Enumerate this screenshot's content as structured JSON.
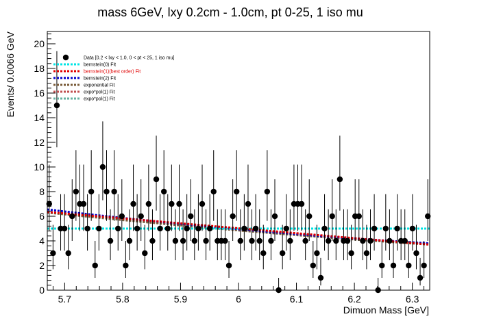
{
  "chart_data": {
    "type": "scatter",
    "title": "mass 6GeV, lxy 0.2cm - 1.0cm, pt 0-25, 1 iso mu",
    "xlabel": "Dimuon Mass [GeV]",
    "ylabel": "Events/ 0.0066 GeV",
    "xlim": [
      5.67,
      6.33
    ],
    "ylim": [
      0,
      21
    ],
    "x_ticks": [
      "5.7",
      "5.8",
      "5.9",
      "6",
      "6.1",
      "6.2",
      "6.3"
    ],
    "x_tick_values": [
      5.7,
      5.8,
      5.9,
      6.0,
      6.1,
      6.2,
      6.3
    ],
    "y_ticks": [
      "0",
      "2",
      "4",
      "6",
      "8",
      "10",
      "12",
      "14",
      "16",
      "18",
      "20"
    ],
    "y_tick_values": [
      0,
      2,
      4,
      6,
      8,
      10,
      12,
      14,
      16,
      18,
      20
    ],
    "grid": false,
    "legend_position": "top-left",
    "colors": {
      "data": "#000000",
      "bernstein0": "#00e5e5",
      "bernstein1": "#e00000",
      "bernstein2": "#0000cc",
      "exponential": "#7a5c3a",
      "expo_pol1_a": "#c05050",
      "expo_pol1_b": "#66b2a0"
    },
    "legend": [
      {
        "label": "Data [0.2 < lxy < 1.0, 0 < pt < 25, 1 iso mu]",
        "kind": "marker",
        "color": "#000000"
      },
      {
        "label": "bernstein(0) Fit",
        "kind": "line",
        "color": "#00e5e5"
      },
      {
        "label": "bernstein(1)(best order) Fit",
        "kind": "line",
        "color": "#e00000"
      },
      {
        "label": "bernstein(2) Fit",
        "kind": "line",
        "color": "#0000cc"
      },
      {
        "label": "exponential Fit",
        "kind": "line",
        "color": "#7a5c3a"
      },
      {
        "label": "expo*pol(1) Fit",
        "kind": "line",
        "color": "#c05050"
      },
      {
        "label": "expo*pol(1) Fit",
        "kind": "line",
        "color": "#66b2a0"
      }
    ],
    "data_points": {
      "name": "Data [0.2 < lxy < 1.0, 0 < pt < 25, 1 iso mu]",
      "x": [
        5.6733,
        5.6799,
        5.6865,
        5.6931,
        5.6997,
        5.7063,
        5.7129,
        5.7195,
        5.7261,
        5.7327,
        5.7393,
        5.7459,
        5.7525,
        5.7591,
        5.7657,
        5.7723,
        5.7789,
        5.7855,
        5.7921,
        5.7987,
        5.8053,
        5.8119,
        5.8185,
        5.8251,
        5.8317,
        5.8383,
        5.8449,
        5.8515,
        5.8581,
        5.8647,
        5.8713,
        5.8779,
        5.8845,
        5.8911,
        5.8977,
        5.9043,
        5.9109,
        5.9175,
        5.9241,
        5.9307,
        5.9373,
        5.9439,
        5.9505,
        5.9571,
        5.9637,
        5.9703,
        5.9769,
        5.9835,
        5.9901,
        5.9967,
        6.0033,
        6.0099,
        6.0165,
        6.0231,
        6.0297,
        6.0363,
        6.0429,
        6.0495,
        6.0561,
        6.0627,
        6.0693,
        6.0759,
        6.0825,
        6.0891,
        6.0957,
        6.1023,
        6.1089,
        6.1155,
        6.1221,
        6.1287,
        6.1353,
        6.1419,
        6.1485,
        6.1551,
        6.1617,
        6.1683,
        6.1749,
        6.1815,
        6.1881,
        6.1947,
        6.2013,
        6.2079,
        6.2145,
        6.2211,
        6.2277,
        6.2343,
        6.2409,
        6.2475,
        6.2541,
        6.2607,
        6.2673,
        6.2739,
        6.2805,
        6.2871,
        6.2937,
        6.3003,
        6.3069,
        6.3135,
        6.3201,
        6.3267
      ],
      "y": [
        7,
        3,
        15,
        5,
        5,
        3,
        6,
        8,
        7,
        7,
        5,
        8,
        2,
        5,
        10,
        8,
        4,
        8,
        5,
        6,
        2,
        4,
        7,
        5,
        6,
        3,
        7,
        4,
        9,
        5,
        8,
        5,
        7,
        4,
        7,
        4,
        5,
        6,
        4,
        5,
        7,
        4,
        5,
        8,
        4,
        4,
        4,
        2,
        6,
        8,
        4,
        5,
        7,
        4,
        5,
        4,
        3,
        8,
        4,
        6,
        0,
        3,
        5,
        4,
        7,
        7,
        7,
        4,
        6,
        2,
        3,
        1,
        5,
        4,
        6,
        4,
        9,
        4,
        4,
        3,
        6,
        6,
        4,
        3,
        4,
        5,
        0,
        2,
        5,
        4,
        2,
        5,
        4,
        4,
        2,
        5,
        3,
        1,
        2,
        6
      ]
    },
    "fits": [
      {
        "name": "bernstein(0) Fit",
        "x": [
          5.67,
          6.33
        ],
        "y": [
          5.0,
          5.0
        ]
      },
      {
        "name": "bernstein(1)(best order) Fit",
        "x": [
          5.67,
          6.33
        ],
        "y": [
          6.35,
          3.7
        ]
      },
      {
        "name": "bernstein(2) Fit",
        "x": [
          5.67,
          6.0,
          6.33
        ],
        "y": [
          6.55,
          4.95,
          3.8
        ]
      },
      {
        "name": "exponential Fit",
        "x": [
          5.67,
          6.0,
          6.33
        ],
        "y": [
          6.3,
          4.85,
          3.7
        ]
      },
      {
        "name": "expo*pol(1) Fit",
        "x": [
          5.67,
          6.0,
          6.33
        ],
        "y": [
          6.35,
          4.9,
          3.75
        ]
      },
      {
        "name": "expo*pol(1) Fit",
        "x": [
          5.67,
          6.0,
          6.33
        ],
        "y": [
          6.3,
          4.9,
          3.72
        ]
      }
    ]
  }
}
